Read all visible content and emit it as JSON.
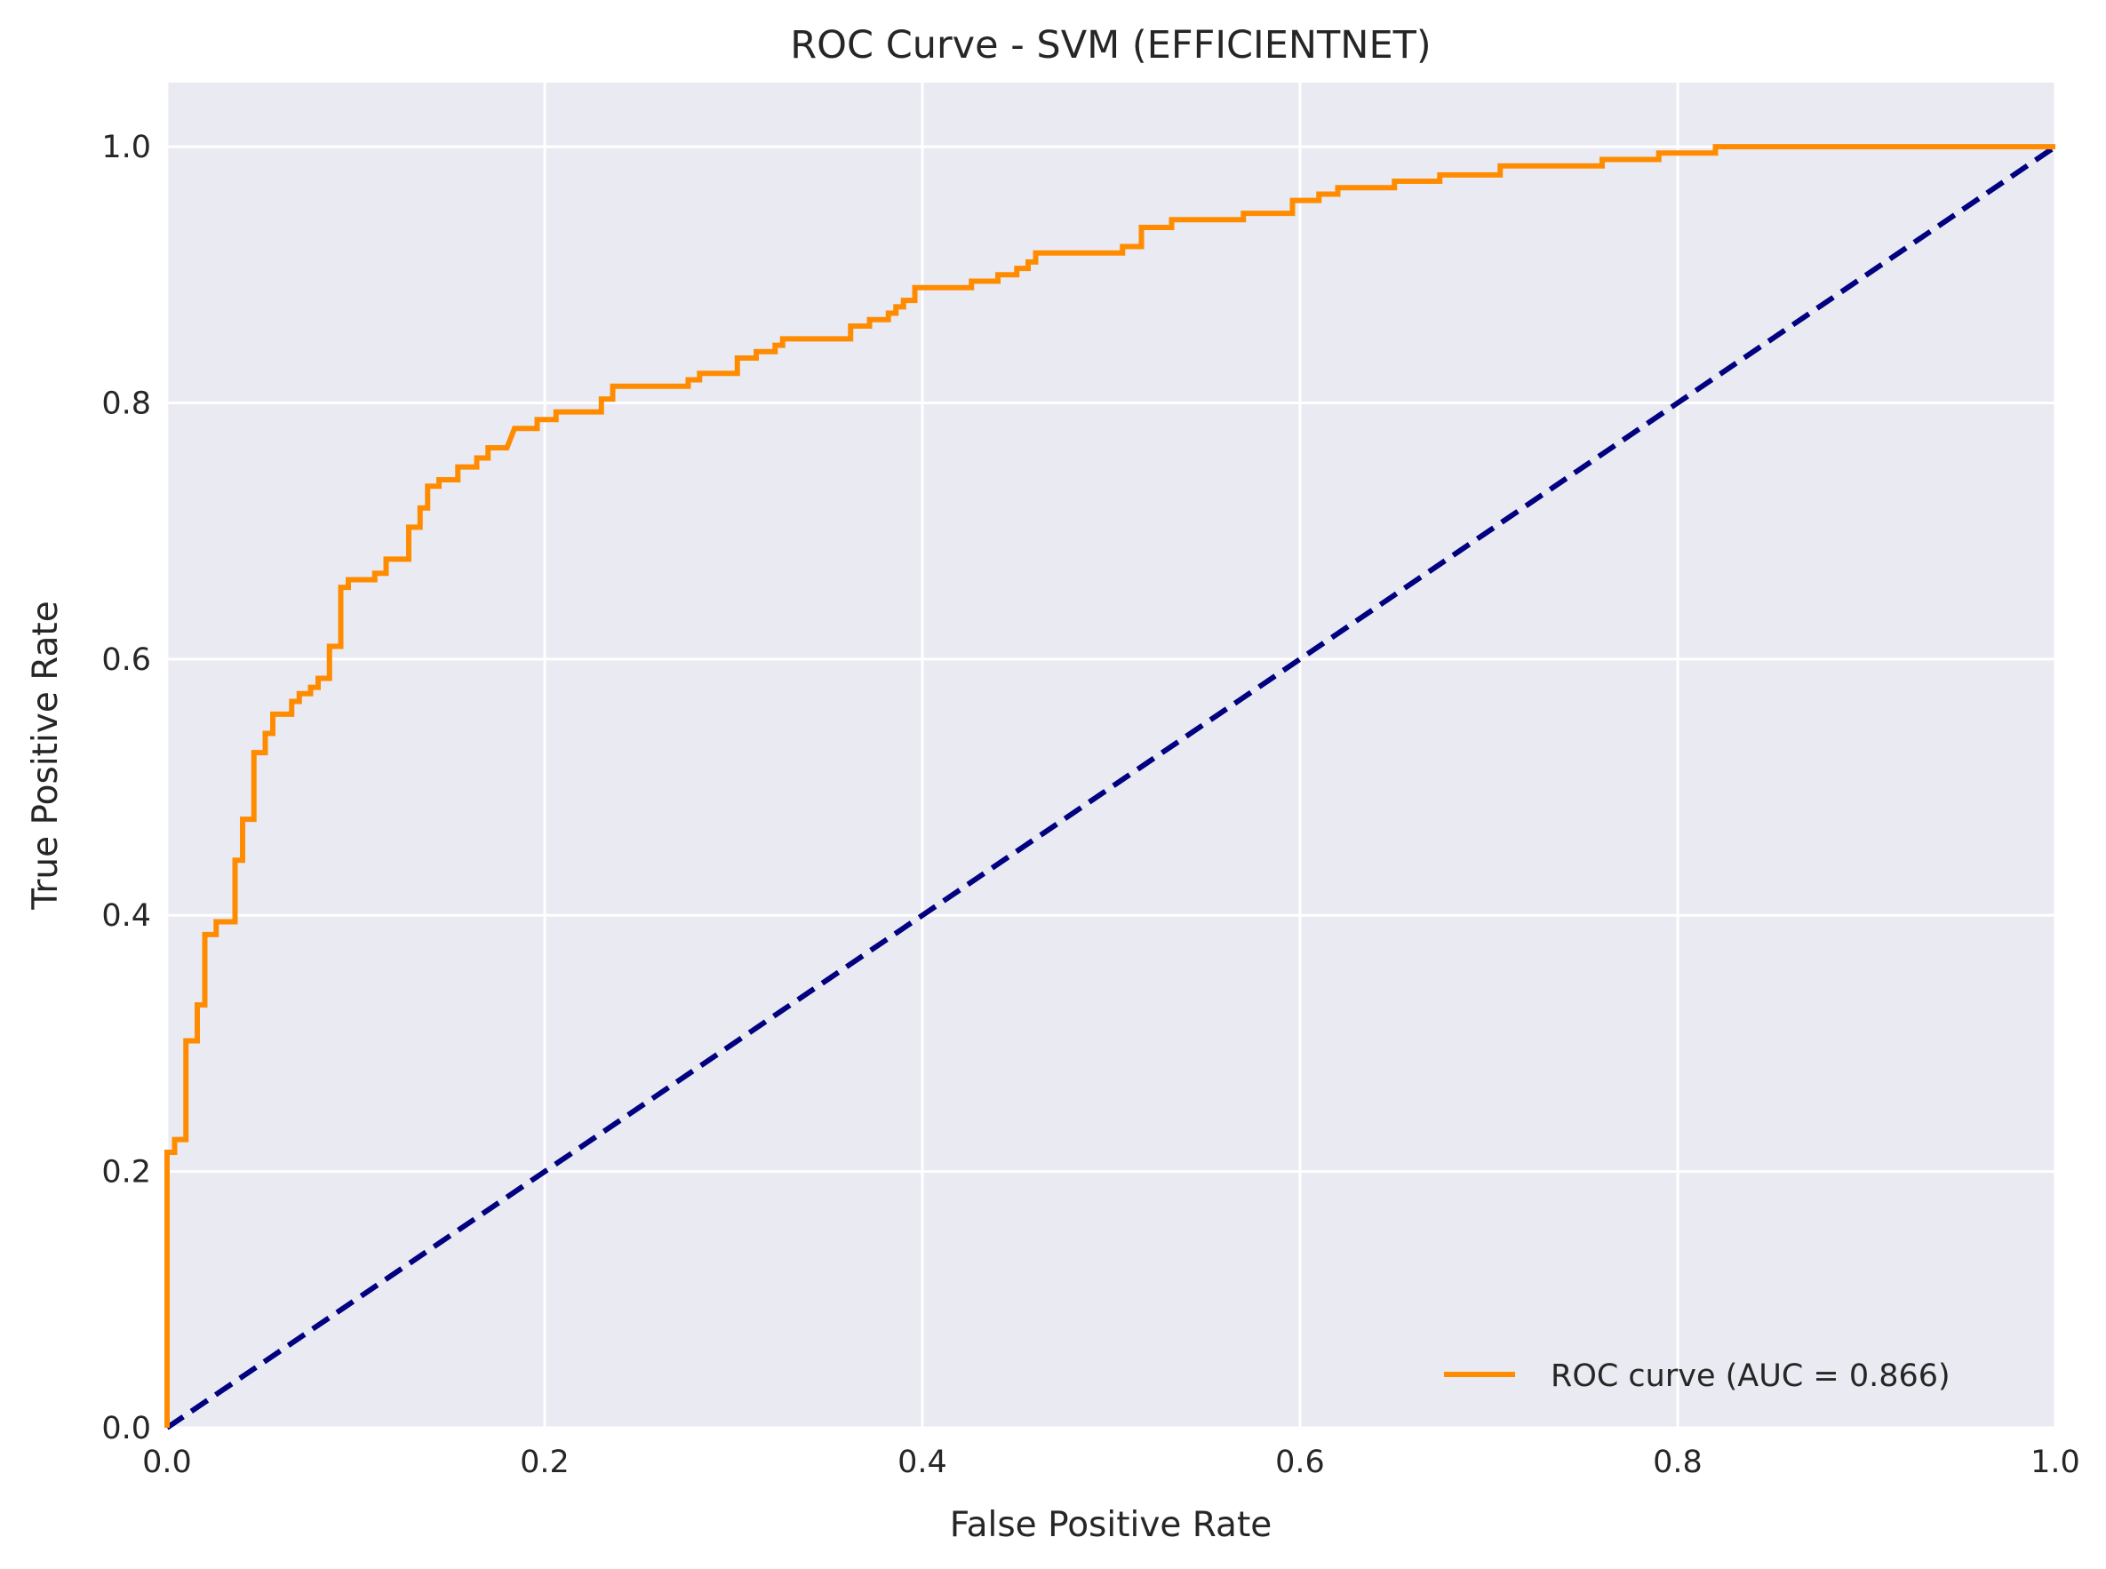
{
  "chart_data": {
    "type": "line",
    "title": "ROC Curve - SVM (EFFICIENTNET)",
    "xlabel": "False Positive Rate",
    "ylabel": "True Positive Rate",
    "xlim": [
      0.0,
      1.0
    ],
    "ylim": [
      0.0,
      1.05
    ],
    "grid": true,
    "legend_position": "lower-right",
    "xticks": [
      "0.0",
      "0.2",
      "0.4",
      "0.6",
      "0.8",
      "1.0"
    ],
    "yticks": [
      "0.0",
      "0.2",
      "0.4",
      "0.6",
      "0.8",
      "1.0"
    ],
    "colors": {
      "plot_background": "#eaeaf2",
      "grid": "#ffffff",
      "roc": "#ff8c00",
      "diagonal": "#000080"
    },
    "series": [
      {
        "name": "ROC curve (AUC = 0.866)",
        "style": "solid",
        "x": [
          0.0,
          0.0,
          0.004,
          0.004,
          0.01,
          0.01,
          0.016,
          0.016,
          0.02,
          0.02,
          0.026,
          0.026,
          0.036,
          0.036,
          0.04,
          0.04,
          0.046,
          0.046,
          0.052,
          0.052,
          0.056,
          0.056,
          0.066,
          0.066,
          0.07,
          0.07,
          0.076,
          0.076,
          0.08,
          0.08,
          0.086,
          0.086,
          0.092,
          0.092,
          0.096,
          0.096,
          0.11,
          0.11,
          0.116,
          0.116,
          0.128,
          0.128,
          0.134,
          0.134,
          0.138,
          0.138,
          0.144,
          0.144,
          0.154,
          0.154,
          0.164,
          0.164,
          0.17,
          0.17,
          0.18,
          0.184,
          0.196,
          0.196,
          0.206,
          0.206,
          0.23,
          0.23,
          0.236,
          0.236,
          0.276,
          0.276,
          0.282,
          0.282,
          0.302,
          0.302,
          0.312,
          0.312,
          0.322,
          0.322,
          0.326,
          0.326,
          0.362,
          0.362,
          0.372,
          0.372,
          0.382,
          0.382,
          0.386,
          0.386,
          0.39,
          0.39,
          0.396,
          0.396,
          0.426,
          0.426,
          0.44,
          0.44,
          0.45,
          0.45,
          0.456,
          0.456,
          0.46,
          0.46,
          0.506,
          0.506,
          0.516,
          0.516,
          0.532,
          0.532,
          0.57,
          0.57,
          0.596,
          0.596,
          0.61,
          0.61,
          0.62,
          0.62,
          0.65,
          0.65,
          0.674,
          0.674,
          0.706,
          0.706,
          0.76,
          0.76,
          0.79,
          0.79,
          0.82,
          0.82,
          1.0
        ],
        "y": [
          0.0,
          0.215,
          0.215,
          0.225,
          0.225,
          0.302,
          0.302,
          0.33,
          0.33,
          0.385,
          0.385,
          0.395,
          0.395,
          0.443,
          0.443,
          0.475,
          0.475,
          0.527,
          0.527,
          0.542,
          0.542,
          0.557,
          0.557,
          0.567,
          0.567,
          0.573,
          0.573,
          0.578,
          0.578,
          0.585,
          0.585,
          0.61,
          0.61,
          0.656,
          0.656,
          0.662,
          0.662,
          0.667,
          0.667,
          0.678,
          0.678,
          0.703,
          0.703,
          0.718,
          0.718,
          0.735,
          0.735,
          0.74,
          0.74,
          0.75,
          0.75,
          0.757,
          0.757,
          0.765,
          0.765,
          0.78,
          0.78,
          0.787,
          0.787,
          0.793,
          0.793,
          0.803,
          0.803,
          0.813,
          0.813,
          0.818,
          0.818,
          0.823,
          0.823,
          0.835,
          0.835,
          0.84,
          0.84,
          0.845,
          0.845,
          0.85,
          0.85,
          0.86,
          0.86,
          0.865,
          0.865,
          0.87,
          0.87,
          0.875,
          0.875,
          0.88,
          0.88,
          0.89,
          0.89,
          0.895,
          0.895,
          0.9,
          0.9,
          0.905,
          0.905,
          0.91,
          0.91,
          0.917,
          0.917,
          0.922,
          0.922,
          0.937,
          0.937,
          0.943,
          0.943,
          0.948,
          0.948,
          0.958,
          0.958,
          0.963,
          0.963,
          0.968,
          0.968,
          0.973,
          0.973,
          0.978,
          0.978,
          0.985,
          0.985,
          0.99,
          0.99,
          0.995,
          0.995,
          1.0,
          1.0
        ]
      },
      {
        "name": "",
        "style": "dashed",
        "x": [
          0.0,
          1.0
        ],
        "y": [
          0.0,
          1.0
        ]
      }
    ]
  }
}
